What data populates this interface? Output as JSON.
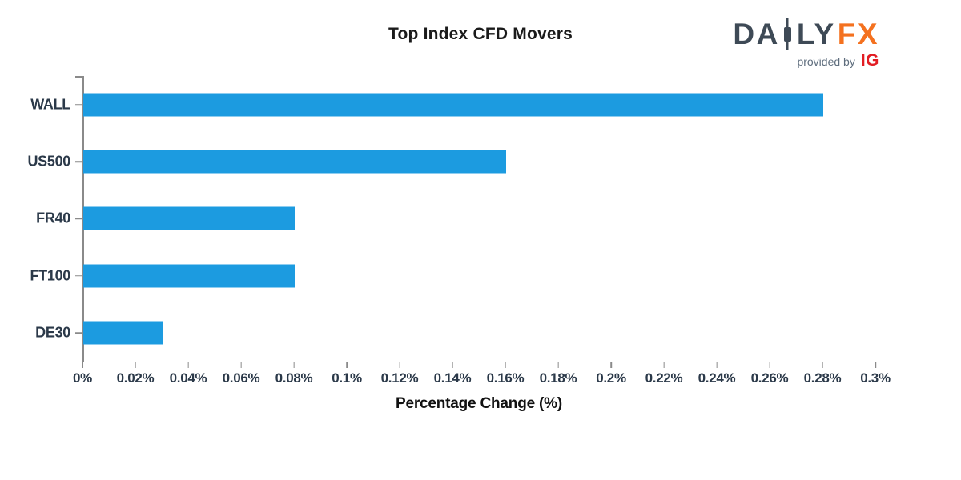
{
  "title": "Top Index CFD Movers",
  "logo": {
    "part1": "DA",
    "part2": "LY",
    "part3": "FX",
    "provided_by": "provided by",
    "ig": "IG",
    "slate_color": "#3e4a56",
    "orange_color": "#f4711f",
    "ig_red_color": "#e21d23",
    "provided_gray_color": "#5f6e7e"
  },
  "chart_data": {
    "type": "bar",
    "orientation": "horizontal",
    "title": "Top Index CFD Movers",
    "categories": [
      "WALL",
      "US500",
      "FR40",
      "FT100",
      "DE30"
    ],
    "values": [
      0.28,
      0.16,
      0.08,
      0.08,
      0.03
    ],
    "xlabel": "Percentage Change (%)",
    "ylabel": "",
    "xlim": [
      0,
      0.3
    ],
    "x_tick_values": [
      0,
      0.02,
      0.04,
      0.06,
      0.08,
      0.1,
      0.12,
      0.14,
      0.16,
      0.18,
      0.2,
      0.22,
      0.24,
      0.26,
      0.28,
      0.3
    ],
    "x_tick_labels": [
      "0%",
      "0.02%",
      "0.04%",
      "0.06%",
      "0.08%",
      "0.1%",
      "0.12%",
      "0.14%",
      "0.16%",
      "0.18%",
      "0.2%",
      "0.22%",
      "0.24%",
      "0.26%",
      "0.28%",
      "0.3%"
    ],
    "grid": false,
    "legend": false,
    "bar_color": "#1c9be0",
    "axis_color": "#8a8a8a",
    "tick_label_color": "#2b3949"
  }
}
